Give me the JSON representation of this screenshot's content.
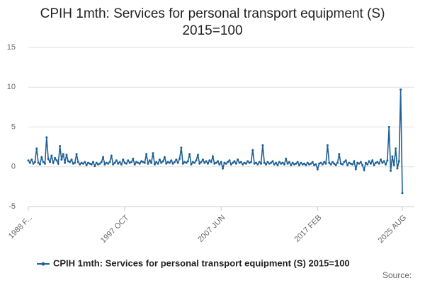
{
  "chart_data": {
    "type": "line",
    "title": "CPIH 1mth: Services for personal transport equipment (S) 2015=100",
    "source": "Source:",
    "categories": [
      "1988 F...",
      null,
      null,
      null,
      null,
      null,
      null,
      null,
      null,
      null,
      null,
      null,
      null,
      null,
      null,
      null,
      null,
      null,
      null,
      null,
      null,
      null,
      null,
      null,
      null,
      null,
      null,
      null,
      null,
      null,
      null,
      null,
      null,
      null,
      null,
      null,
      null,
      null,
      null,
      null,
      null,
      null,
      null,
      null,
      null,
      null,
      null,
      null,
      null,
      null,
      null,
      null,
      null,
      null,
      null,
      null,
      null,
      null,
      "1997 OCT",
      null,
      null,
      null,
      null,
      null,
      null,
      null,
      null,
      null,
      null,
      null,
      null,
      null,
      null,
      null,
      null,
      null,
      null,
      null,
      null,
      null,
      null,
      null,
      null,
      null,
      null,
      null,
      null,
      null,
      null,
      null,
      null,
      null,
      null,
      null,
      null,
      null,
      null,
      null,
      null,
      null,
      null,
      null,
      null,
      null,
      null,
      null,
      null,
      null,
      null,
      null,
      null,
      null,
      null,
      null,
      null,
      null,
      "2007 JUN",
      null,
      null,
      null,
      null,
      null,
      null,
      null,
      null,
      null,
      null,
      null,
      null,
      null,
      null,
      null,
      null,
      null,
      null,
      null,
      null,
      null,
      null,
      null,
      null,
      null,
      null,
      null,
      null,
      null,
      null,
      null,
      null,
      null,
      null,
      null,
      null,
      null,
      null,
      null,
      null,
      null,
      null,
      null,
      null,
      null,
      null,
      null,
      null,
      null,
      null,
      null,
      null,
      null,
      null,
      null,
      null,
      null,
      "2017 FEB",
      null,
      null,
      null,
      null,
      null,
      null,
      null,
      null,
      null,
      null,
      null,
      null,
      null,
      null,
      null,
      null,
      null,
      null,
      null,
      null,
      null,
      null,
      null,
      null,
      null,
      null,
      null,
      null,
      null,
      null,
      null,
      null,
      null,
      null,
      null,
      null,
      null,
      null,
      null,
      null,
      null,
      null,
      null,
      null,
      null,
      null,
      null,
      null,
      null,
      null,
      "2025 AUG"
    ],
    "series": [
      {
        "name": "CPIH 1mth: Services for personal transport equipment (S) 2015=100",
        "color": "#206095",
        "values": [
          0.8,
          0.5,
          0.9,
          0.4,
          0.6,
          2.3,
          0.5,
          0.3,
          1.2,
          0.6,
          0.4,
          3.7,
          1.0,
          0.6,
          1.4,
          0.5,
          1.1,
          0.8,
          0.4,
          2.6,
          0.9,
          1.6,
          0.5,
          1.5,
          0.7,
          0.6,
          0.9,
          0.4,
          0.5,
          1.6,
          0.6,
          0.3,
          0.5,
          0.4,
          0.6,
          0.2,
          0.5,
          0.4,
          0.3,
          0.6,
          0.1,
          0.5,
          0.3,
          0.4,
          0.6,
          1.2,
          0.3,
          0.5,
          0.4,
          0.6,
          1.4,
          0.3,
          0.5,
          0.8,
          0.4,
          0.6,
          0.3,
          0.9,
          0.5,
          0.4,
          0.8,
          0.5,
          0.6,
          1.0,
          0.3,
          0.6,
          0.5,
          0.4,
          0.7,
          0.6,
          0.5,
          1.6,
          0.4,
          0.8,
          0.5,
          1.7,
          0.3,
          0.6,
          0.4,
          0.9,
          0.5,
          0.7,
          1.2,
          0.4,
          0.6,
          0.5,
          0.8,
          0.4,
          0.6,
          0.9,
          0.5,
          1.0,
          2.4,
          0.4,
          0.6,
          0.5,
          0.7,
          1.6,
          0.3,
          0.6,
          0.5,
          0.8,
          1.5,
          0.4,
          0.6,
          0.9,
          0.5,
          0.7,
          0.4,
          0.8,
          0.6,
          1.3,
          0.4,
          0.5,
          0.7,
          0.3,
          0.6,
          -0.2,
          0.5,
          0.4,
          0.6,
          0.8,
          0.3,
          0.5,
          0.7,
          0.4,
          0.9,
          0.5,
          0.6,
          0.3,
          0.5,
          0.4,
          0.7,
          0.5,
          0.6,
          2.1,
          0.4,
          0.5,
          0.3,
          0.6,
          0.4,
          2.7,
          0.5,
          0.3,
          0.6,
          0.4,
          0.5,
          0.7,
          0.3,
          0.5,
          0.2,
          0.6,
          0.4,
          0.5,
          0.3,
          1.0,
          0.4,
          0.6,
          0.2,
          0.5,
          0.3,
          0.4,
          0.6,
          0.2,
          0.5,
          0.3,
          0.4,
          0.2,
          0.5,
          0.3,
          0.4,
          0.6,
          0.2,
          0.3,
          -0.3,
          0.4,
          0.5,
          0.3,
          0.6,
          0.4,
          2.7,
          0.5,
          0.3,
          0.6,
          0.4,
          0.2,
          0.5,
          1.6,
          0.4,
          0.3,
          0.6,
          0.8,
          0.2,
          0.5,
          0.4,
          0.3,
          0.7,
          -0.3,
          0.5,
          0.4,
          0.6,
          0.2,
          -0.4,
          0.5,
          0.3,
          0.7,
          0.4,
          0.8,
          0.2,
          0.5,
          0.6,
          0.4,
          0.9,
          0.5,
          0.7,
          0.3,
          0.8,
          5.0,
          -0.5,
          1.3,
          0.2,
          2.3,
          -0.2,
          0.7,
          9.7,
          -3.3
        ]
      }
    ],
    "ylim": [
      -5,
      15
    ],
    "yticks": [
      -5,
      0,
      5,
      10,
      15
    ],
    "grid": true
  }
}
